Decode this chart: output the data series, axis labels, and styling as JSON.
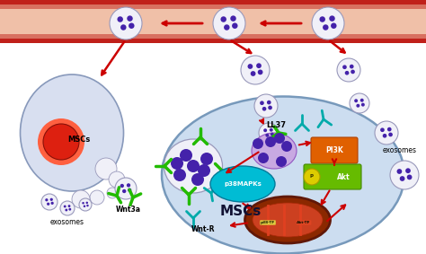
{
  "bg_color": "#ffffff",
  "labels": {
    "MSCs_left": "MSCs",
    "exosomes_left": "exosomes",
    "Wnt3a": "Wnt3a",
    "WntR": "Wnt-R",
    "LL37": "LL37",
    "PI3K": "PI3K",
    "p38MAPKs": "p38MAPKs",
    "Akt": "Akt",
    "P": "P",
    "MSCs_center": "MSCs",
    "exosomes_right": "exosomes"
  },
  "cell_colors": {
    "msc_left_fill": "#d8dff0",
    "msc_left_edge": "#8899bb",
    "nucleus_red": "#dd2010",
    "nucleus_glow": "#ff6040",
    "exosome_fill": "#f0f0f8",
    "exosome_edge": "#9999bb",
    "main_cell_fill": "#ccddf0",
    "main_cell_edge": "#7799bb",
    "mitochondria_outer": "#8b2800",
    "mitochondria_inner": "#b83010",
    "mito_lum": "#cc4020",
    "p38_fill": "#00bcd4",
    "p38_edge": "#007a99",
    "PI3K_fill": "#e06000",
    "PI3K_edge": "#b04000",
    "PAkt_fill": "#66bb00",
    "PAkt_edge": "#448800",
    "PAkt_circle": "#ddcc00",
    "green_receptor": "#22bb00",
    "teal_receptor": "#00aaaa",
    "arrow_color": "#cc0000",
    "tf_yellow": "#ddcc40",
    "tf_red": "#dd4422"
  },
  "purple_dots": "#4422aa",
  "vessel_outer": "#c0201a",
  "vessel_mid": "#d87060",
  "vessel_lumen": "#f0c0a8"
}
